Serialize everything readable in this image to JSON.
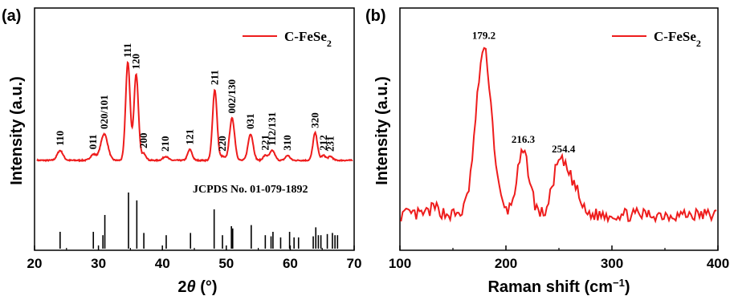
{
  "chart_data": [
    {
      "panel": "(a)",
      "type": "line",
      "xlabel_pre": "2",
      "xlabel_theta": "θ",
      "xlabel_post": " (°)",
      "ylabel": "Intensity (a.u.)",
      "xlim": [
        20,
        70
      ],
      "xticks": [
        "20",
        "30",
        "40",
        "50",
        "60",
        "70"
      ],
      "legend": {
        "label": "C-FeSe",
        "sub": "2",
        "placement": "top-right"
      },
      "line_color": "#ee1c1c",
      "series": [
        {
          "name": "C-FeSe2",
          "baseline": 0.05,
          "peaks": [
            {
              "x": 24.0,
              "h": 0.1,
              "w": 0.45
            },
            {
              "x": 29.2,
              "h": 0.06,
              "w": 0.45
            },
            {
              "x": 30.9,
              "h": 0.27,
              "w": 0.55
            },
            {
              "x": 34.6,
              "h": 1.0,
              "w": 0.35
            },
            {
              "x": 35.9,
              "h": 0.88,
              "w": 0.35
            },
            {
              "x": 37.1,
              "h": 0.07,
              "w": 0.35
            },
            {
              "x": 40.5,
              "h": 0.04,
              "w": 0.4
            },
            {
              "x": 44.3,
              "h": 0.11,
              "w": 0.35
            },
            {
              "x": 48.2,
              "h": 0.72,
              "w": 0.35
            },
            {
              "x": 49.4,
              "h": 0.04,
              "w": 0.35
            },
            {
              "x": 50.9,
              "h": 0.43,
              "w": 0.4
            },
            {
              "x": 53.8,
              "h": 0.27,
              "w": 0.4
            },
            {
              "x": 56.1,
              "h": 0.05,
              "w": 0.35
            },
            {
              "x": 57.2,
              "h": 0.1,
              "w": 0.4
            },
            {
              "x": 59.6,
              "h": 0.05,
              "w": 0.35
            },
            {
              "x": 63.9,
              "h": 0.28,
              "w": 0.35
            },
            {
              "x": 65.2,
              "h": 0.05,
              "w": 0.35
            },
            {
              "x": 66.3,
              "h": 0.04,
              "w": 0.35
            }
          ]
        }
      ],
      "peak_labels": [
        {
          "text": "110",
          "x": 24.0
        },
        {
          "text": "011",
          "x": 29.2
        },
        {
          "text": "020/101",
          "x": 30.9
        },
        {
          "text": "111",
          "x": 34.6
        },
        {
          "text": "120",
          "x": 35.9
        },
        {
          "text": "200",
          "x": 37.1
        },
        {
          "text": "210",
          "x": 40.5
        },
        {
          "text": "121",
          "x": 44.3
        },
        {
          "text": "211",
          "x": 48.2
        },
        {
          "text": "220",
          "x": 49.4
        },
        {
          "text": "002/130",
          "x": 50.9
        },
        {
          "text": "031",
          "x": 53.8
        },
        {
          "text": "221",
          "x": 56.1
        },
        {
          "text": "112/131",
          "x": 57.2
        },
        {
          "text": "310",
          "x": 59.6
        },
        {
          "text": "320",
          "x": 63.9
        },
        {
          "text": "212",
          "x": 65.2
        },
        {
          "text": "231",
          "x": 66.3
        }
      ],
      "reference": {
        "label": "JCPDS No. 01-079-1892",
        "lines": [
          {
            "x": 24.0,
            "h": 0.3
          },
          {
            "x": 29.2,
            "h": 0.3
          },
          {
            "x": 30.7,
            "h": 0.24
          },
          {
            "x": 31.0,
            "h": 0.6
          },
          {
            "x": 34.7,
            "h": 1.0
          },
          {
            "x": 36.0,
            "h": 0.86
          },
          {
            "x": 37.1,
            "h": 0.28
          },
          {
            "x": 40.6,
            "h": 0.24
          },
          {
            "x": 44.4,
            "h": 0.28
          },
          {
            "x": 48.1,
            "h": 0.7
          },
          {
            "x": 49.4,
            "h": 0.24
          },
          {
            "x": 50.8,
            "h": 0.4
          },
          {
            "x": 51.0,
            "h": 0.36
          },
          {
            "x": 53.9,
            "h": 0.42
          },
          {
            "x": 56.1,
            "h": 0.24
          },
          {
            "x": 57.0,
            "h": 0.22
          },
          {
            "x": 57.3,
            "h": 0.3
          },
          {
            "x": 58.5,
            "h": 0.2
          },
          {
            "x": 59.9,
            "h": 0.3
          },
          {
            "x": 60.6,
            "h": 0.2
          },
          {
            "x": 61.3,
            "h": 0.2
          },
          {
            "x": 63.6,
            "h": 0.22
          },
          {
            "x": 64.0,
            "h": 0.38
          },
          {
            "x": 64.4,
            "h": 0.24
          },
          {
            "x": 64.8,
            "h": 0.24
          },
          {
            "x": 65.8,
            "h": 0.26
          },
          {
            "x": 66.6,
            "h": 0.28
          },
          {
            "x": 67.0,
            "h": 0.24
          },
          {
            "x": 67.4,
            "h": 0.24
          }
        ]
      }
    },
    {
      "panel": "(b)",
      "type": "line",
      "xlabel_pre": "Raman shift (cm",
      "xlabel_sup": "−1",
      "xlabel_post": ")",
      "ylabel": "Intensity (a.u.)",
      "xlim": [
        100,
        400
      ],
      "xticks": [
        "100",
        "200",
        "300",
        "400"
      ],
      "legend": {
        "label": "C-FeSe",
        "sub": "2",
        "placement": "top-right"
      },
      "line_color": "#ee1c1c",
      "series": [
        {
          "name": "C-FeSe2",
          "baseline": 0.06,
          "noise": 0.045,
          "peaks": [
            {
              "x": 179.2,
              "h": 1.0,
              "w": 7.5
            },
            {
              "x": 216.3,
              "h": 0.37,
              "w": 6
            },
            {
              "x": 248,
              "h": 0.24,
              "w": 5
            },
            {
              "x": 256,
              "h": 0.2,
              "w": 5
            },
            {
              "x": 265,
              "h": 0.14,
              "w": 5
            },
            {
              "x": 133,
              "h": 0.04,
              "w": 5
            }
          ]
        }
      ],
      "peak_labels": [
        {
          "text": "179.2",
          "x": 179.2
        },
        {
          "text": "216.3",
          "x": 216.3
        },
        {
          "text": "254.4",
          "x": 254.4
        }
      ]
    }
  ]
}
